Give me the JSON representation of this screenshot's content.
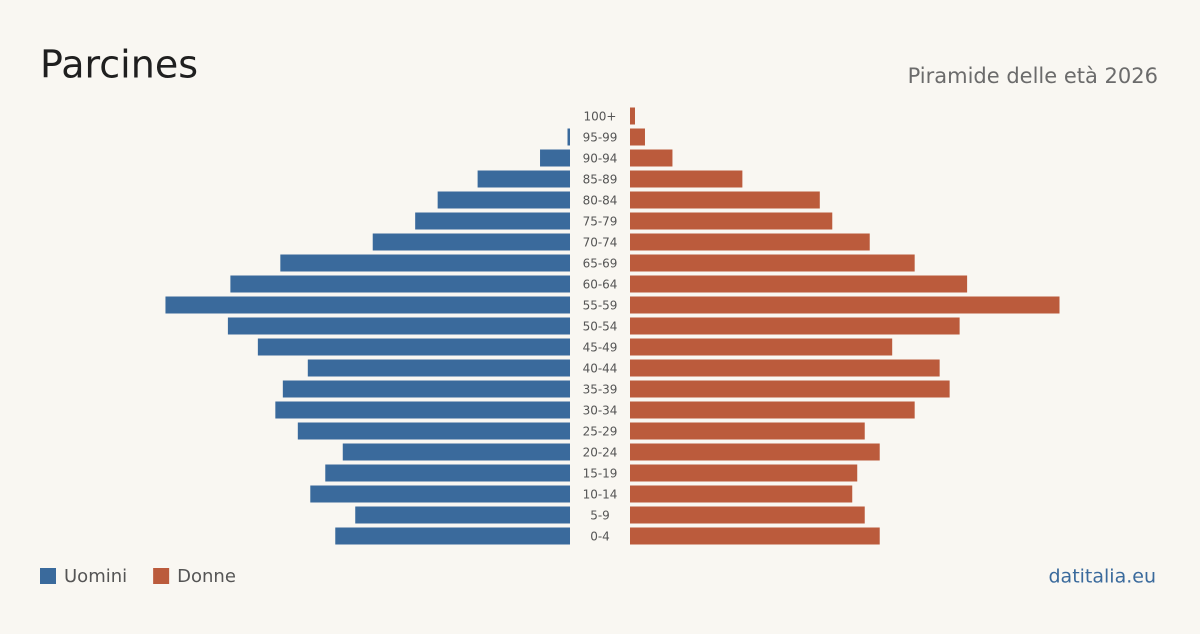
{
  "chart_data": {
    "type": "pyramid",
    "title": "Parcines",
    "subtitle": "Piramide delle età 2026",
    "source": "datitalia.eu",
    "categories": [
      "100+",
      "95-99",
      "90-94",
      "85-89",
      "80-84",
      "75-79",
      "70-74",
      "65-69",
      "60-64",
      "55-59",
      "50-54",
      "45-49",
      "40-44",
      "35-39",
      "30-34",
      "25-29",
      "20-24",
      "15-19",
      "10-14",
      "5-9",
      "0-4"
    ],
    "series": [
      {
        "name": "Uomini",
        "color": "#3a6a9c",
        "values": [
          0,
          1,
          12,
          37,
          53,
          62,
          79,
          116,
          136,
          162,
          137,
          125,
          105,
          115,
          118,
          109,
          91,
          98,
          104,
          86,
          94
        ]
      },
      {
        "name": "Donne",
        "color": "#bb5b3c",
        "values": [
          2,
          6,
          17,
          45,
          76,
          81,
          96,
          114,
          135,
          172,
          132,
          105,
          124,
          128,
          114,
          94,
          100,
          91,
          89,
          94,
          100
        ]
      }
    ],
    "xlim": [
      0,
      175
    ]
  }
}
